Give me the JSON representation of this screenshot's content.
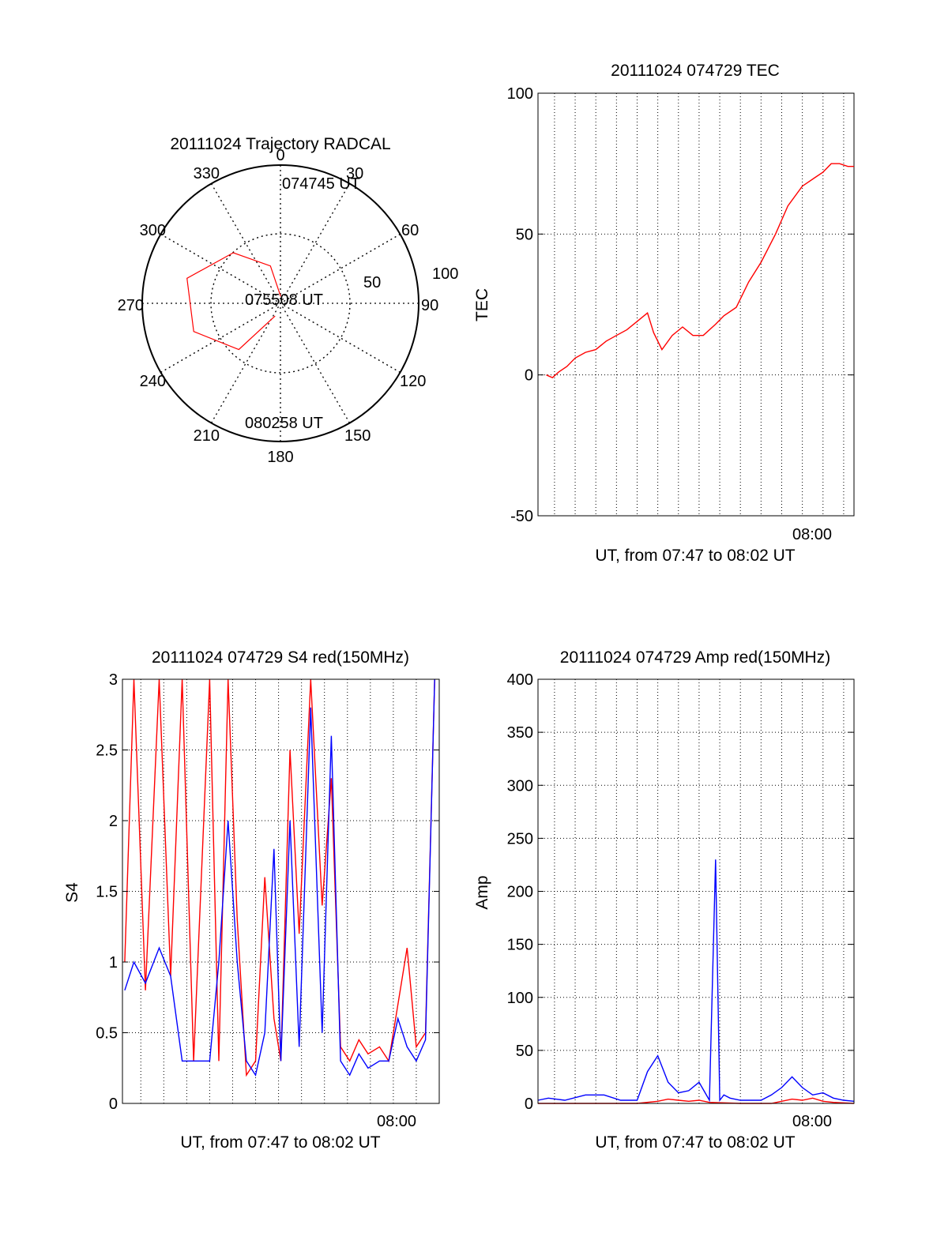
{
  "chart_data": [
    {
      "type": "polar",
      "title": "20111024 Trajectory RADCAL",
      "azimuth_labels": [
        "0",
        "30",
        "60",
        "90",
        "120",
        "150",
        "180",
        "210",
        "240",
        "270",
        "300",
        "330"
      ],
      "radial_labels": [
        "50",
        "100"
      ],
      "elevation_range": [
        0,
        100
      ],
      "trajectory_color": "#ff0000",
      "trajectory": [
        {
          "az": 2,
          "el": 5
        },
        {
          "az": 345,
          "el": 28
        },
        {
          "az": 317,
          "el": 50
        },
        {
          "az": 285,
          "el": 70
        },
        {
          "az": 252,
          "el": 66
        },
        {
          "az": 222,
          "el": 45
        },
        {
          "az": 203,
          "el": 10
        }
      ],
      "annotations": [
        "074745 UT",
        "075508 UT",
        "080258 UT"
      ]
    },
    {
      "type": "line",
      "title": "20111024 074729 TEC",
      "ylabel": "TEC",
      "xlabel": "UT, from 07:47 to 08:02 UT",
      "xtick_labels": [
        "08:00"
      ],
      "ylim": [
        -50,
        100
      ],
      "yticks": [
        "-50",
        "0",
        "50",
        "100"
      ],
      "x_minutes_range": [
        -12.8,
        2.5
      ],
      "x_tick_minutes": [
        0
      ],
      "grid": true,
      "series": [
        {
          "color": "#ff0000",
          "values_x_min": [
            -12.4,
            -12.1,
            -11.8,
            -11.4,
            -11.0,
            -10.5,
            -10.0,
            -9.5,
            -9.0,
            -8.5,
            -8.0,
            -7.5,
            -7.2,
            -6.8,
            -6.3,
            -5.8,
            -5.3,
            -4.8,
            -4.2,
            -3.8,
            -3.2,
            -2.6,
            -2.0,
            -1.3,
            -0.7,
            0.0,
            0.6,
            1.0,
            1.4,
            1.8,
            2.2,
            2.5
          ],
          "values_y": [
            0,
            -1,
            1,
            3,
            6,
            8,
            9,
            12,
            14,
            16,
            19,
            22,
            15,
            9,
            14,
            17,
            14,
            14,
            18,
            21,
            24,
            33,
            40,
            50,
            60,
            67,
            70,
            72,
            75,
            75,
            74,
            74
          ]
        }
      ]
    },
    {
      "type": "line",
      "title": "20111024 074729 S4 red(150MHz)",
      "ylabel": "S4",
      "xlabel": "UT, from 07:47 to 08:02 UT",
      "xtick_labels": [
        "08:00"
      ],
      "ylim": [
        0,
        3
      ],
      "yticks": [
        "0",
        "0.5",
        "1",
        "1.5",
        "2",
        "2.5",
        "3"
      ],
      "x_minutes_range": [
        -12.8,
        1.0
      ],
      "x_tick_minutes": [
        0
      ],
      "grid": true,
      "series": [
        {
          "color": "#ff0000",
          "values_x_min": [
            -12.7,
            -12.3,
            -11.8,
            -11.2,
            -10.7,
            -10.2,
            -9.7,
            -9.0,
            -8.6,
            -8.2,
            -7.8,
            -7.4,
            -7.0,
            -6.6,
            -6.2,
            -5.9,
            -5.5,
            -5.1,
            -4.6,
            -4.1,
            -3.7,
            -3.3,
            -2.9,
            -2.5,
            -2.1,
            -1.6,
            -1.2,
            -0.8,
            -0.4,
            0.0,
            0.4,
            0.8
          ],
          "values_y": [
            1.0,
            3.0,
            0.8,
            3.0,
            0.9,
            3.0,
            0.3,
            3.0,
            0.3,
            3.0,
            1.3,
            0.2,
            0.3,
            1.6,
            0.6,
            0.3,
            2.5,
            1.2,
            3.0,
            1.4,
            2.3,
            0.4,
            0.3,
            0.45,
            0.35,
            0.4,
            0.3,
            0.7,
            1.1,
            0.4,
            0.5,
            3.0
          ]
        },
        {
          "color": "#0000ff",
          "values_x_min": [
            -12.7,
            -12.3,
            -11.8,
            -11.2,
            -10.7,
            -10.2,
            -9.7,
            -9.0,
            -8.6,
            -8.2,
            -7.8,
            -7.4,
            -7.0,
            -6.6,
            -6.2,
            -5.9,
            -5.5,
            -5.1,
            -4.6,
            -4.1,
            -3.7,
            -3.3,
            -2.9,
            -2.5,
            -2.1,
            -1.6,
            -1.2,
            -0.8,
            -0.4,
            0.0,
            0.4,
            0.8
          ],
          "values_y": [
            0.8,
            1.0,
            0.85,
            1.1,
            0.9,
            0.3,
            0.3,
            0.3,
            1.0,
            2.0,
            1.0,
            0.3,
            0.2,
            0.5,
            1.8,
            0.3,
            2.0,
            0.4,
            2.8,
            0.5,
            2.6,
            0.3,
            0.2,
            0.35,
            0.25,
            0.3,
            0.3,
            0.6,
            0.4,
            0.3,
            0.45,
            3.0
          ]
        }
      ]
    },
    {
      "type": "line",
      "title": "20111024 074729 Amp red(150MHz)",
      "ylabel": "Amp",
      "xlabel": "UT, from 07:47 to 08:02 UT",
      "xtick_labels": [
        "08:00"
      ],
      "ylim": [
        0,
        400
      ],
      "yticks": [
        "0",
        "50",
        "100",
        "150",
        "200",
        "250",
        "300",
        "350",
        "400"
      ],
      "x_minutes_range": [
        -12.8,
        2.5
      ],
      "x_tick_minutes": [
        0
      ],
      "grid": true,
      "series": [
        {
          "color": "#0000ff",
          "values_x_min": [
            -12.8,
            -12.3,
            -11.5,
            -10.5,
            -9.6,
            -8.8,
            -8.0,
            -7.5,
            -7.0,
            -6.5,
            -6.0,
            -5.5,
            -5.0,
            -4.5,
            -4.2,
            -4.0,
            -3.8,
            -3.5,
            -3.0,
            -2.5,
            -2.0,
            -1.5,
            -1.0,
            -0.5,
            0.0,
            0.5,
            1.0,
            1.5,
            2.0,
            2.5
          ],
          "values_y": [
            3,
            5,
            3,
            8,
            8,
            3,
            3,
            30,
            45,
            20,
            10,
            12,
            20,
            3,
            230,
            3,
            8,
            5,
            3,
            3,
            3,
            8,
            15,
            25,
            15,
            8,
            10,
            5,
            3,
            2
          ]
        },
        {
          "color": "#ff0000",
          "values_x_min": [
            -12.8,
            -10.0,
            -8.0,
            -7.0,
            -6.5,
            -6.0,
            -5.5,
            -5.0,
            -4.5,
            -3.0,
            -1.5,
            -1.0,
            -0.5,
            0.0,
            0.5,
            1.0,
            1.5,
            2.5
          ],
          "values_y": [
            0,
            0,
            0,
            2,
            4,
            3,
            2,
            3,
            1,
            0,
            0,
            2,
            4,
            3,
            5,
            2,
            1,
            0
          ]
        }
      ]
    }
  ]
}
